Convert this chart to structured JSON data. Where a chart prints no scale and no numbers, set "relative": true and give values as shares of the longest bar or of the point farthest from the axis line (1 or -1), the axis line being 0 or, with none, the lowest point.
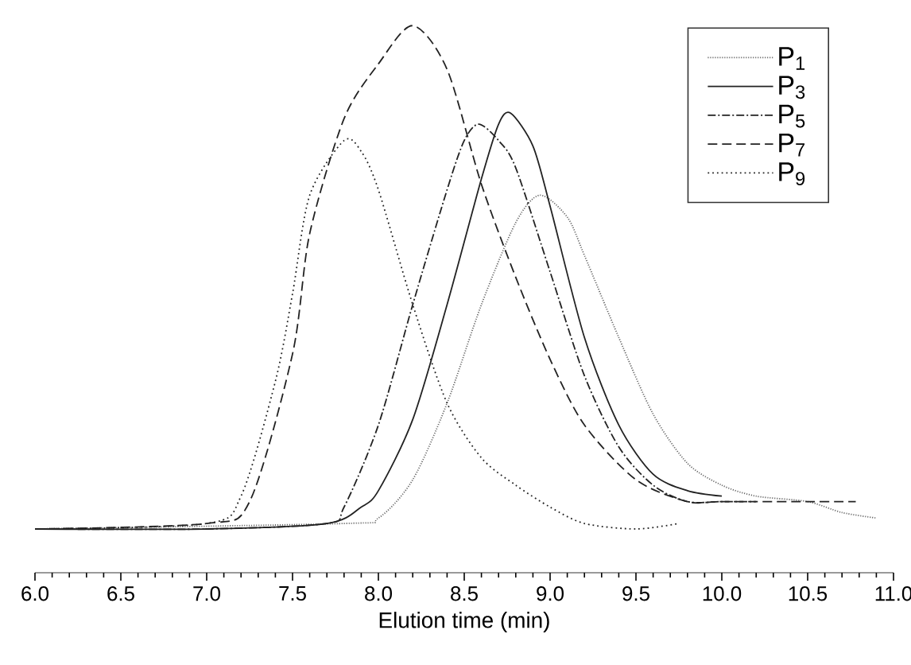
{
  "chart_data": {
    "type": "line",
    "relative": true,
    "xlabel": "Elution time (min)",
    "tick_labels": "x",
    "legend": "top right",
    "grid": false,
    "marker": "none",
    "xlim": [
      6.0,
      11.0
    ],
    "xticks": [
      {
        "value": 6.0,
        "label": "6.0"
      },
      {
        "value": 6.5,
        "label": "6.5"
      },
      {
        "value": 7.0,
        "label": "7.0"
      },
      {
        "value": 7.5,
        "label": "7.5"
      },
      {
        "value": 8.0,
        "label": "8.0"
      },
      {
        "value": 8.5,
        "label": "8.5"
      },
      {
        "value": 9.0,
        "label": "9.0"
      },
      {
        "value": 9.5,
        "label": "9.5"
      },
      {
        "value": 10.0,
        "label": "10.0"
      },
      {
        "value": 10.5,
        "label": "10.5"
      },
      {
        "value": 11.0,
        "label": "11.0"
      }
    ],
    "series": [
      {
        "name": "P$_{1}$",
        "color": "#666666",
        "line_style": "dotted",
        "x": [
          6.0,
          7.8,
          8.0,
          8.2,
          8.4,
          8.6,
          8.8,
          8.94,
          9.1,
          9.2,
          9.4,
          9.6,
          9.8,
          10.0,
          10.2,
          10.5,
          10.7,
          10.9
        ],
        "values": [
          0.08,
          0.09,
          0.1,
          0.17,
          0.31,
          0.49,
          0.64,
          0.69,
          0.65,
          0.58,
          0.43,
          0.29,
          0.2,
          0.16,
          0.14,
          0.13,
          0.11,
          0.1
        ]
      },
      {
        "name": "P$_{3}$",
        "color": "#222222",
        "line_style": "solid",
        "x": [
          6.0,
          7.0,
          7.7,
          7.9,
          8.0,
          8.2,
          8.4,
          8.6,
          8.7,
          8.77,
          8.9,
          9.0,
          9.2,
          9.4,
          9.6,
          9.8,
          10.0
        ],
        "values": [
          0.08,
          0.08,
          0.09,
          0.12,
          0.15,
          0.28,
          0.49,
          0.72,
          0.82,
          0.84,
          0.78,
          0.67,
          0.43,
          0.27,
          0.18,
          0.15,
          0.14
        ]
      },
      {
        "name": "P$_{5}$",
        "color": "#222222",
        "line_style": "dashdot",
        "x": [
          6.0,
          7.0,
          7.7,
          7.8,
          8.0,
          8.2,
          8.4,
          8.5,
          8.585,
          8.7,
          8.8,
          9.0,
          9.2,
          9.4,
          9.6,
          9.8,
          10.0,
          10.2
        ],
        "values": [
          0.08,
          0.08,
          0.09,
          0.12,
          0.27,
          0.49,
          0.7,
          0.79,
          0.82,
          0.79,
          0.74,
          0.55,
          0.36,
          0.23,
          0.16,
          0.13,
          0.13,
          0.13
        ]
      },
      {
        "name": "P$_{7}$",
        "color": "#222222",
        "line_style": "dashed",
        "x": [
          6.0,
          7.0,
          7.25,
          7.5,
          7.6,
          7.8,
          8.0,
          8.2,
          8.4,
          8.6,
          8.8,
          9.0,
          9.2,
          9.5,
          9.8,
          10.0,
          10.5,
          10.78
        ],
        "values": [
          0.08,
          0.09,
          0.13,
          0.4,
          0.62,
          0.83,
          0.93,
          1.0,
          0.92,
          0.71,
          0.54,
          0.39,
          0.27,
          0.17,
          0.13,
          0.13,
          0.13,
          0.13
        ]
      },
      {
        "name": "P$_{9}$",
        "color": "#222222",
        "line_style": "dotted",
        "x": [
          6.0,
          7.0,
          7.2,
          7.4,
          7.5,
          7.6,
          7.8,
          7.9,
          8.0,
          8.2,
          8.4,
          8.6,
          8.8,
          9.0,
          9.2,
          9.5,
          9.75
        ],
        "values": [
          0.08,
          0.09,
          0.14,
          0.35,
          0.51,
          0.69,
          0.79,
          0.77,
          0.7,
          0.49,
          0.31,
          0.21,
          0.16,
          0.12,
          0.09,
          0.08,
          0.09
        ]
      }
    ]
  }
}
